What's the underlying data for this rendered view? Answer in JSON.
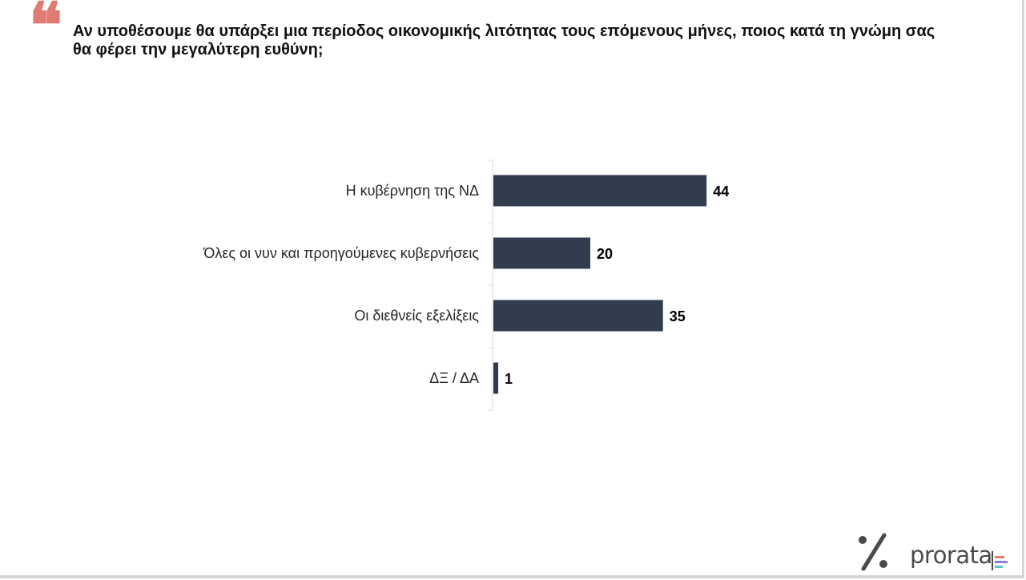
{
  "header": {
    "question": "Αν υποθέσουμε θα υπάρξει μια περίοδος οικονομικής λιτότητας τους επόμενους μήνες, ποιος κατά τη γνώμη σας θα φέρει την μεγαλύτερη ευθύνη;",
    "quote_icon": "quote-icon",
    "quote_color": "#e07b73"
  },
  "chart_data": {
    "type": "bar",
    "orientation": "horizontal",
    "categories": [
      "Η κυβέρνηση της ΝΔ",
      "Όλες οι νυν και προηγούμενες κυβερνήσεις",
      "Οι διεθνείς εξελίξεις",
      "ΔΞ / ΔΑ"
    ],
    "values": [
      44,
      20,
      35,
      1
    ],
    "bar_color": "#323c4f",
    "grid": false,
    "data_labels": true
  },
  "branding": {
    "logo_text": "prorata",
    "symbol": "%",
    "accent_colors": [
      "#e07b73",
      "#8a7fd1",
      "#5fc3c8"
    ]
  }
}
